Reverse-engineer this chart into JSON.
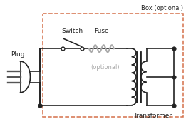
{
  "bg_color": "#ffffff",
  "line_color": "#222222",
  "box_color": "#d4704a",
  "fuse_color": "#aaaaaa",
  "optional_color": "#aaaaaa",
  "title": "Box (optional)",
  "plug_label": "Plug",
  "switch_label": "Switch",
  "fuse_label": "Fuse",
  "optional_label": "(optional)",
  "transformer_label": "Transformer",
  "figsize": [
    2.68,
    1.88
  ],
  "dpi": 100
}
